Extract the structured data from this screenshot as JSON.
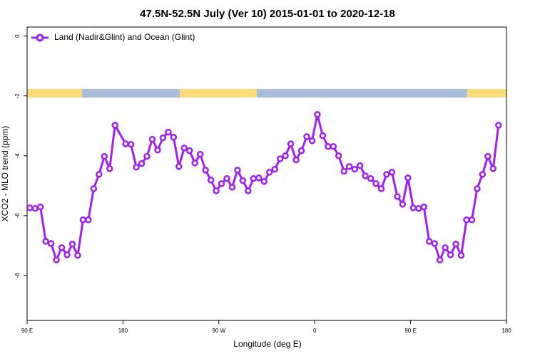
{
  "chart_data": {
    "type": "line",
    "title": "47.5N-52.5N July (Ver 10)   2015-01-01 to 2020-12-18",
    "x_label": "Longitude (deg E)",
    "y_label": "XCO2 - MLO trend (ppm)",
    "xlim": [
      90,
      540
    ],
    "xticks": [
      {
        "value": 90,
        "label": "90 E"
      },
      180,
      {
        "value": 270,
        "label": "90 W"
      },
      {
        "value": 360,
        "label": "0"
      },
      {
        "value": 450,
        "label": "90 E"
      },
      {
        "value": 540,
        "label": "180"
      }
    ],
    "ylim": [
      -9.5,
      0.3
    ],
    "yticks": [
      0,
      -2,
      -4,
      -6,
      -8
    ],
    "x": [
      92.5,
      97.5,
      102.5,
      107.5,
      112.5,
      117.5,
      122.5,
      127.5,
      132.5,
      137.5,
      142.5,
      147.5,
      152.5,
      157.5,
      162.5,
      167.5,
      172.5,
      182.5,
      187.5,
      192.5,
      197.5,
      202.5,
      207.5,
      212.5,
      217.5,
      222.5,
      227.5,
      232.5,
      237.5,
      242.5,
      247.5,
      252.5,
      257.5,
      262.5,
      267.5,
      272.5,
      277.5,
      282.5,
      287.5,
      292.5,
      297.5,
      302.5,
      307.5,
      312.5,
      317.5,
      322.5,
      327.5,
      332.5,
      337.5,
      342.5,
      347.5,
      352.5,
      357.5,
      362.5,
      367.5,
      372.5,
      377.5,
      382.5,
      387.5,
      392.5,
      397.5,
      402.5,
      407.5,
      412.5,
      417.5,
      422.5,
      427.5,
      432.5,
      437.5,
      442.5,
      447.5,
      452.5,
      457.5,
      462.5,
      467.5,
      472.5,
      477.5,
      482.5,
      487.5,
      492.5,
      497.5,
      502.5,
      507.5,
      512.5,
      517.5,
      522.5,
      527.5,
      532.5
    ],
    "series": [
      {
        "name": "Land (Nadir&Glint) and Ocean (Glint)",
        "color": "#a020f0",
        "values": [
          -5.74,
          -5.76,
          -5.71,
          -6.86,
          -6.93,
          -7.48,
          -7.07,
          -7.31,
          -6.95,
          -7.33,
          -6.14,
          -6.14,
          -5.1,
          -4.62,
          -4.02,
          -4.43,
          -2.98,
          -3.6,
          -3.62,
          -4.38,
          -4.26,
          -4.02,
          -3.45,
          -3.81,
          -3.4,
          -3.21,
          -3.38,
          -4.36,
          -3.74,
          -3.83,
          -4.24,
          -3.95,
          -4.48,
          -4.81,
          -5.17,
          -4.93,
          -4.76,
          -5.05,
          -4.48,
          -4.83,
          -5.17,
          -4.76,
          -4.74,
          -4.86,
          -4.55,
          -4.45,
          -4.1,
          -4.0,
          -3.6,
          -4.14,
          -3.83,
          -3.36,
          -3.5,
          -2.62,
          -3.33,
          -3.69,
          -3.69,
          -4.0,
          -4.52,
          -4.36,
          -4.45,
          -4.33,
          -4.67,
          -4.76,
          -4.93,
          -5.1,
          -4.62,
          -4.55,
          -5.36,
          -5.62,
          -4.74,
          -5.74,
          -5.76,
          -5.71,
          -6.86,
          -6.93,
          -7.48,
          -7.07,
          -7.31,
          -6.95,
          -7.33,
          -6.14,
          -6.14,
          -5.1,
          -4.62,
          -4.02,
          -4.43,
          -2.98
        ]
      }
    ]
  }
}
